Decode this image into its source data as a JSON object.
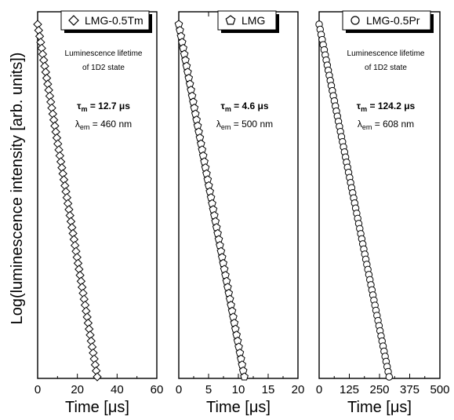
{
  "chart_data": [
    {
      "type": "scatter",
      "legend": "LMG-0.5Tm",
      "legend_marker": "diamond",
      "xlabel": "Time [μs]",
      "xlim": [
        0,
        60
      ],
      "xticks": [
        0,
        20,
        40,
        60
      ],
      "minor_xticks": [
        10,
        30,
        50
      ],
      "annotation": {
        "line1": "Luminescence lifetime",
        "line2": "of 1D2 state",
        "tau_symbol": "τ",
        "tau_sub": "m",
        "tau_value": " = 12.7 μs",
        "lambda_symbol": "λ",
        "lambda_sub": "em",
        "lambda_value": " = 460 nm"
      },
      "series": [
        {
          "marker": "diamond",
          "x_start": 0,
          "x_end": 30,
          "n_points": 60,
          "y_range": [
            1.0,
            0.0
          ]
        }
      ]
    },
    {
      "type": "scatter",
      "legend": "LMG",
      "legend_marker": "pentagon",
      "xlabel": "Time [μs]",
      "xlim": [
        0,
        20
      ],
      "xticks": [
        0,
        5,
        10,
        15,
        20
      ],
      "minor_xticks": [
        2.5,
        7.5,
        12.5,
        17.5
      ],
      "annotation": {
        "tau_symbol": "τ",
        "tau_sub": "m",
        "tau_value": " = 4.6 μs",
        "lambda_symbol": "λ",
        "lambda_sub": "em",
        "lambda_value": " = 500 nm"
      },
      "series": [
        {
          "marker": "pentagon",
          "x_start": 0,
          "x_end": 11,
          "n_points": 60,
          "y_range": [
            1.0,
            0.0
          ]
        }
      ]
    },
    {
      "type": "scatter",
      "legend": "LMG-0.5Pr",
      "legend_marker": "circle",
      "xlabel": "Time [μs]",
      "xlim": [
        0,
        500
      ],
      "xticks": [
        0,
        125,
        250,
        375,
        500
      ],
      "minor_xticks": [
        62.5,
        187.5,
        312.5,
        437.5
      ],
      "annotation": {
        "line1": "Luminescence lifetime",
        "line2": "of 1D2 state",
        "tau_symbol": "τ",
        "tau_sub": "m",
        "tau_value": " = 124.2 μs",
        "lambda_symbol": "λ",
        "lambda_sub": "em",
        "lambda_value": " = 608 nm"
      },
      "series": [
        {
          "marker": "circle",
          "x_start": 0,
          "x_end": 290,
          "n_points": 70,
          "y_range": [
            1.0,
            0.0
          ]
        }
      ]
    }
  ],
  "shared": {
    "ylabel": "Log(luminescence intensity [arb. units])"
  }
}
